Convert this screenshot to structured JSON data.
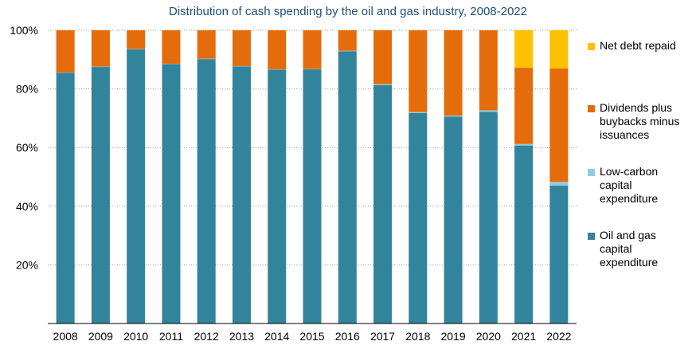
{
  "chart_data": {
    "type": "bar",
    "stacked": true,
    "title": "Distribution of cash spending by the oil and gas industry, 2008-2022",
    "xlabel": "",
    "ylabel": "",
    "ylim": [
      0,
      100
    ],
    "yticks": [
      {
        "value": 20,
        "label": "20%"
      },
      {
        "value": 40,
        "label": "40%"
      },
      {
        "value": 60,
        "label": "60%"
      },
      {
        "value": 80,
        "label": "80%"
      },
      {
        "value": 100,
        "label": "100%"
      }
    ],
    "grid": "horizontal dotted",
    "legend_position": "right",
    "categories": [
      "2008",
      "2009",
      "2010",
      "2011",
      "2012",
      "2013",
      "2014",
      "2015",
      "2016",
      "2017",
      "2018",
      "2019",
      "2020",
      "2021",
      "2022"
    ],
    "series": [
      {
        "name": "Oil and gas capital expenditure",
        "color": "#31849b",
        "values": [
          85.5,
          87.5,
          93.5,
          88.5,
          90.2,
          87.7,
          86.6,
          86.7,
          92.8,
          81.3,
          71.8,
          70.6,
          72.2,
          60.7,
          47.0
        ]
      },
      {
        "name": "Low-carbon capital expenditure",
        "color": "#92cddc",
        "values": [
          0.1,
          0.1,
          0.1,
          0.1,
          0.1,
          0.1,
          0.1,
          0.1,
          0.2,
          0.3,
          0.3,
          0.3,
          0.5,
          0.5,
          1.3
        ]
      },
      {
        "name": "Dividends plus buybacks minus issuances",
        "color": "#e46c0a",
        "values": [
          14.4,
          12.4,
          6.4,
          11.4,
          9.7,
          12.2,
          13.3,
          13.2,
          7.0,
          18.4,
          27.9,
          29.1,
          27.3,
          26.0,
          38.7
        ]
      },
      {
        "name": "Net debt repaid",
        "color": "#ffc000",
        "values": [
          0,
          0,
          0,
          0,
          0,
          0,
          0,
          0,
          0,
          0,
          0,
          0,
          0,
          12.8,
          13.0
        ]
      }
    ]
  },
  "legend": {
    "items": [
      {
        "lines": [
          "Net debt repaid"
        ],
        "color": "#ffc000"
      },
      {
        "lines": [
          "Dividends plus",
          "buybacks minus",
          "issuances"
        ],
        "color": "#e46c0a"
      },
      {
        "lines": [
          "Low-carbon",
          "capital",
          "expenditure"
        ],
        "color": "#92cddc"
      },
      {
        "lines": [
          "Oil and gas",
          "capital",
          "expenditure"
        ],
        "color": "#31849b"
      }
    ]
  }
}
